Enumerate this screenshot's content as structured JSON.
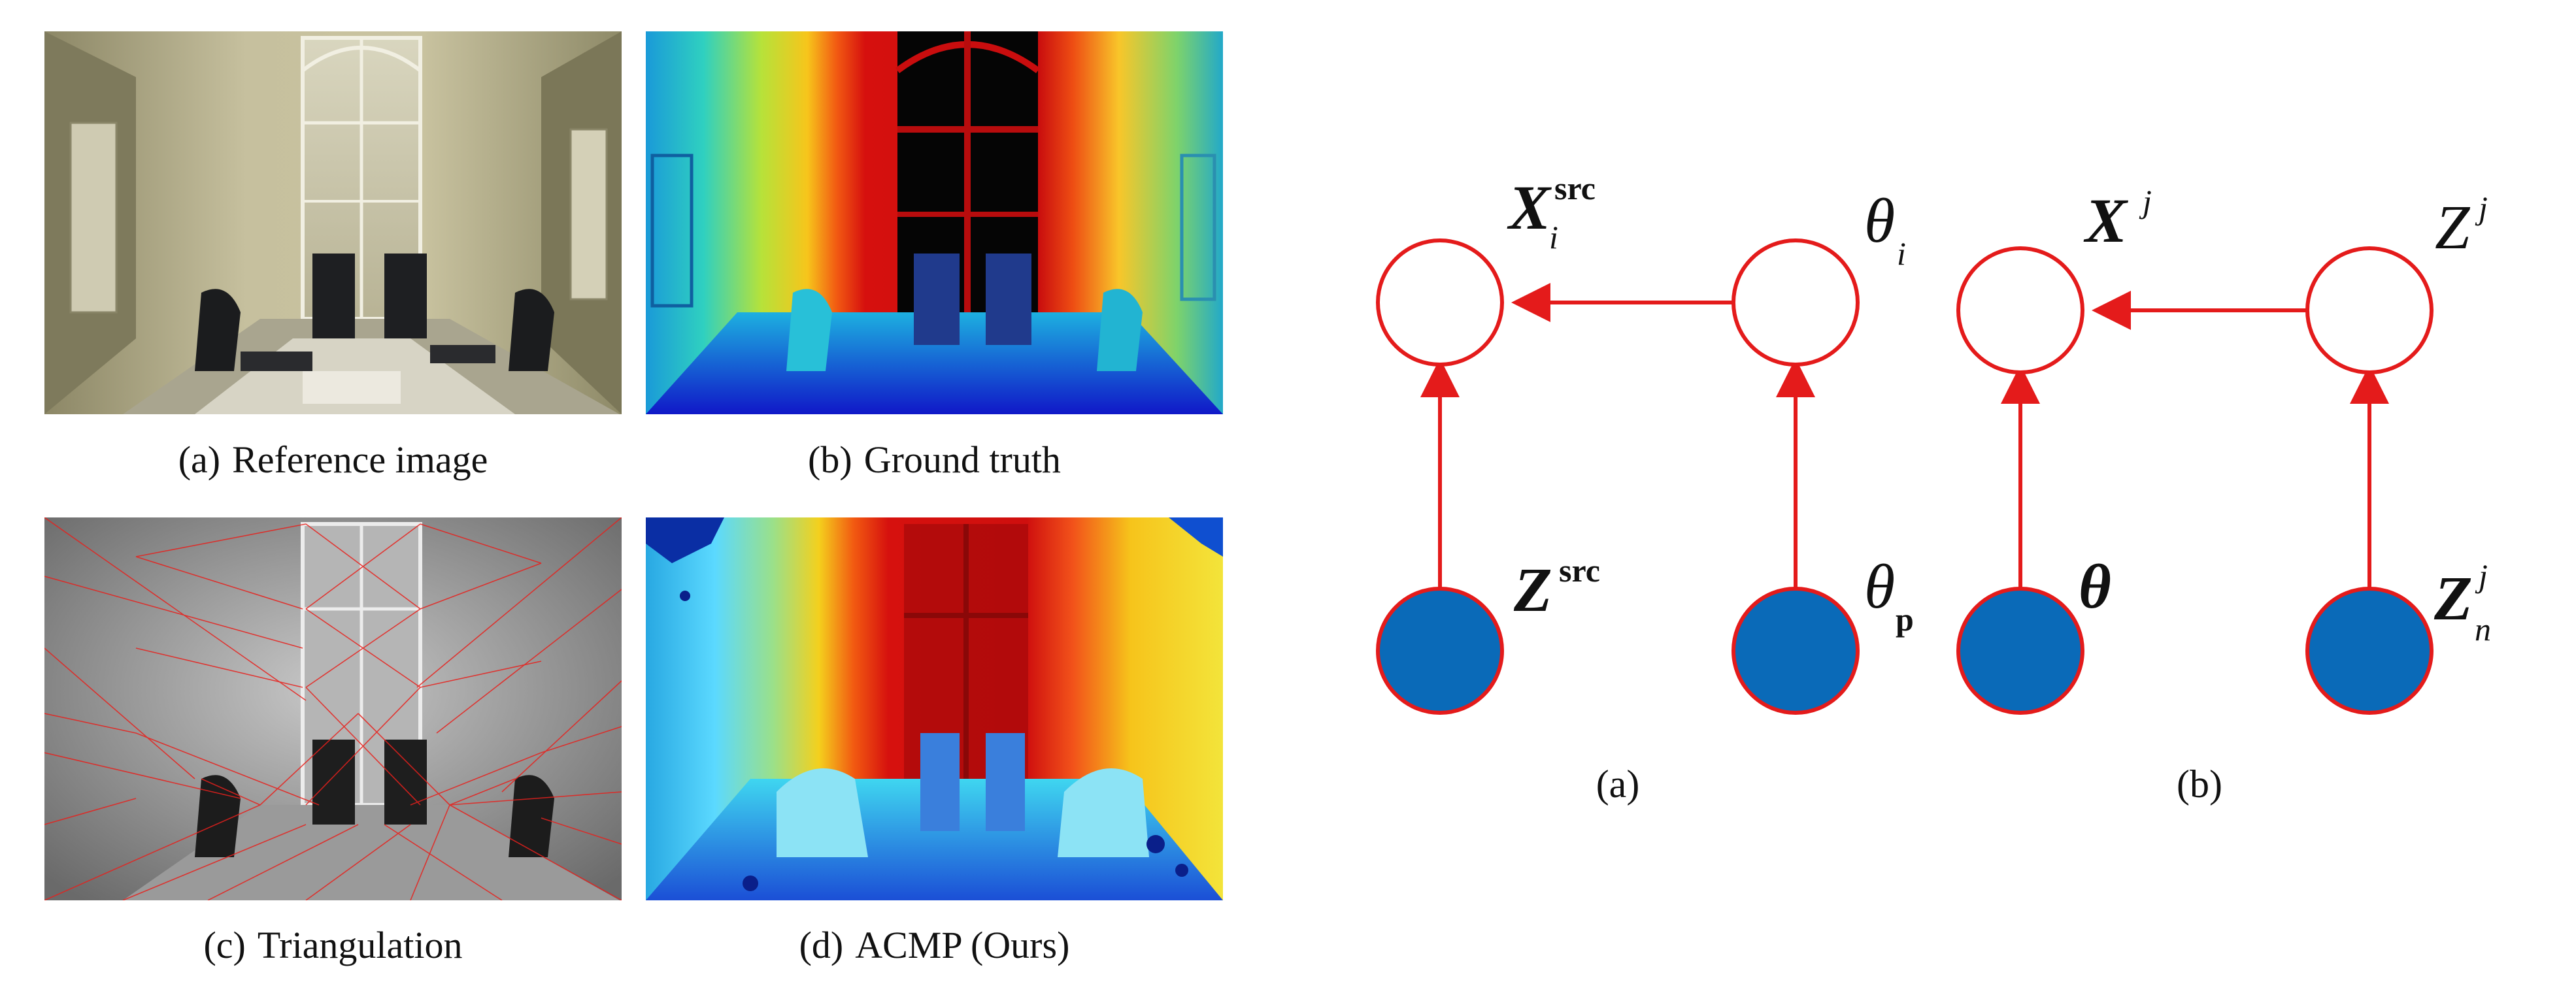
{
  "left_figure": {
    "captions": [
      {
        "tag": "(a)",
        "text": "Reference image"
      },
      {
        "tag": "(b)",
        "text": "Ground truth"
      },
      {
        "tag": "(c)",
        "text": "Triangulation"
      },
      {
        "tag": "(d)",
        "text": "ACMP (Ours)"
      }
    ]
  },
  "right_figure": {
    "subfigure_a": {
      "caption": "(a)",
      "nodes": {
        "x_src": {
          "base": "X",
          "sup": "src",
          "sub": "i",
          "observed": false
        },
        "theta_i": {
          "base": "θ",
          "sub": "i",
          "observed": false
        },
        "z_src": {
          "base": "Z",
          "sup": "src",
          "observed": true
        },
        "theta_p": {
          "base": "θ",
          "sub": "p",
          "observed": true
        }
      }
    },
    "subfigure_b": {
      "caption": "(b)",
      "nodes": {
        "x_j": {
          "base": "X",
          "sup": "j",
          "observed": false
        },
        "z_j": {
          "base": "Z",
          "sup": "j",
          "observed": false
        },
        "theta": {
          "base": "θ",
          "observed": true
        },
        "z_n_j": {
          "base": "Z",
          "sup": "j",
          "sub": "n",
          "observed": true
        }
      }
    },
    "colors": {
      "edge": "#e41b1b",
      "observed_fill": "#0a6ab8",
      "open_fill": "#ffffff"
    }
  }
}
